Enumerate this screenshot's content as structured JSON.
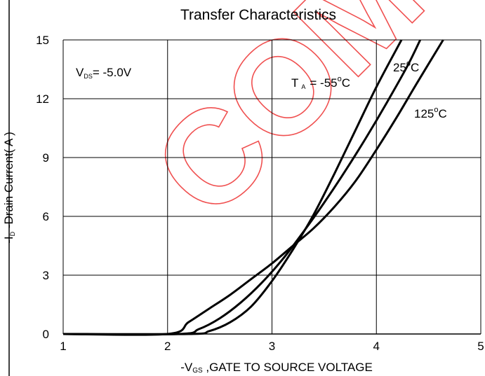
{
  "chart_data": {
    "type": "line",
    "title": "Transfer Characteristics",
    "xlabel": "-VGS ,GATE TO SOURCE VOLTAGE",
    "ylabel": "-ID -Drain Current( A )",
    "xlim": [
      1,
      5
    ],
    "ylim": [
      0,
      15
    ],
    "xticks": [
      "1",
      "2",
      "3",
      "4",
      "5"
    ],
    "yticks": [
      "0",
      "3",
      "6",
      "9",
      "12",
      "15"
    ],
    "grid": true,
    "condition": "VDS= -5.0V",
    "series": [
      {
        "name": "TA = -55°C",
        "color": "#000000",
        "x": [
          1.0,
          2.2,
          2.4,
          2.6,
          2.8,
          3.0,
          3.2,
          3.4,
          3.6,
          3.8,
          4.0,
          4.2,
          4.24
        ],
        "y": [
          0,
          0,
          0.15,
          0.6,
          1.4,
          2.7,
          4.3,
          6.1,
          8.2,
          10.4,
          12.6,
          14.6,
          15.0
        ]
      },
      {
        "name": "25°C",
        "color": "#000000",
        "x": [
          1.0,
          2.1,
          2.3,
          2.5,
          2.7,
          2.9,
          3.1,
          3.3,
          3.5,
          3.7,
          3.9,
          4.1,
          4.3,
          4.42
        ],
        "y": [
          0,
          0,
          0.25,
          0.8,
          1.6,
          2.6,
          3.8,
          5.2,
          6.7,
          8.3,
          10.0,
          11.8,
          13.7,
          15.0
        ]
      },
      {
        "name": "125°C",
        "color": "#000000",
        "x": [
          1.0,
          2.0,
          2.2,
          2.4,
          2.6,
          2.8,
          3.0,
          3.2,
          3.4,
          3.6,
          3.8,
          4.0,
          4.2,
          4.4,
          4.64
        ],
        "y": [
          0,
          0,
          0.6,
          1.3,
          2.0,
          2.8,
          3.6,
          4.5,
          5.4,
          6.5,
          7.8,
          9.4,
          11.1,
          12.9,
          15.0
        ]
      }
    ]
  },
  "colors": {
    "curve": "#000000",
    "grid": "#000000",
    "watermark": "#f05050"
  },
  "watermark": {
    "text": "COM"
  }
}
